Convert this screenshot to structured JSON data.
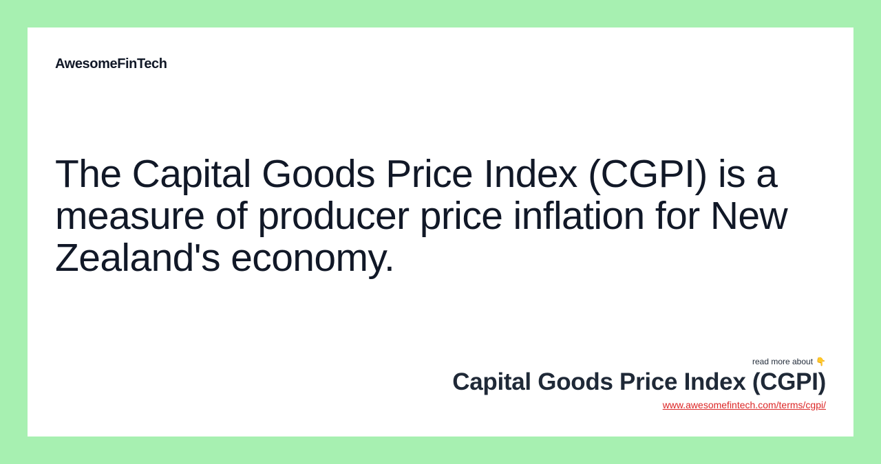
{
  "brand": {
    "name": "AwesomeFinTech"
  },
  "main": {
    "headline": "The Capital Goods Price Index (CGPI) is a measure of producer price inflation for New Zealand's economy."
  },
  "footer": {
    "read_more": "read more about",
    "pointer_emoji": "👇",
    "term_title": "Capital Goods Price Index (CGPI)",
    "term_url": "www.awesomefintech.com/terms/cgpi/"
  },
  "colors": {
    "background": "#a7f0b1",
    "card": "#ffffff",
    "text": "#111827",
    "link": "#dc2626"
  }
}
